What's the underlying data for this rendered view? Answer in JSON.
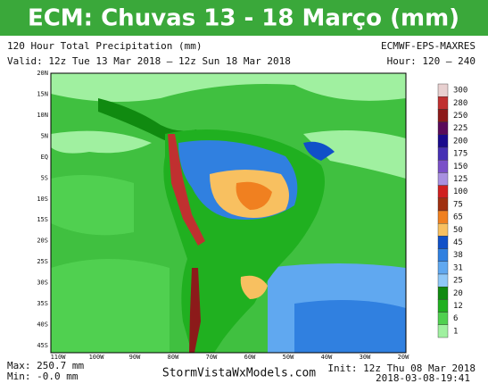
{
  "header": {
    "title": "ECM: Chuvas 13 - 18 Março (mm)"
  },
  "info": {
    "product": "120 Hour Total Precipitation (mm)",
    "model": "ECMWF-EPS-MAXRES",
    "valid": "Valid: 12z Tue 13 Mar 2018 — 12z Sun 18 Mar 2018",
    "hour": "Hour: 120 — 240"
  },
  "map": {
    "lat_labels": [
      "20N",
      "15N",
      "10N",
      "5N",
      "EQ",
      "5S",
      "10S",
      "15S",
      "20S",
      "25S",
      "30S",
      "35S",
      "40S",
      "45S"
    ],
    "lon_labels": [
      "110W",
      "100W",
      "90W",
      "80W",
      "70W",
      "60W",
      "50W",
      "40W",
      "30W",
      "20W"
    ]
  },
  "legend": {
    "levels": [
      {
        "label": "300",
        "color": "#e8d0d0"
      },
      {
        "label": "280",
        "color": "#c03030"
      },
      {
        "label": "250",
        "color": "#8c1a1a"
      },
      {
        "label": "225",
        "color": "#5a0a5a"
      },
      {
        "label": "200",
        "color": "#1a0a8c"
      },
      {
        "label": "175",
        "color": "#4630b4"
      },
      {
        "label": "150",
        "color": "#7a50c8"
      },
      {
        "label": "125",
        "color": "#a890e0"
      },
      {
        "label": "100",
        "color": "#d02020"
      },
      {
        "label": "75",
        "color": "#a03010"
      },
      {
        "label": "65",
        "color": "#f08020"
      },
      {
        "label": "50",
        "color": "#f8c060"
      },
      {
        "label": "45",
        "color": "#1050c8"
      },
      {
        "label": "38",
        "color": "#3080e0"
      },
      {
        "label": "31",
        "color": "#60a8f0"
      },
      {
        "label": "25",
        "color": "#90c8f8"
      },
      {
        "label": "20",
        "color": "#108a10"
      },
      {
        "label": "12",
        "color": "#20b020"
      },
      {
        "label": "6",
        "color": "#50d050"
      },
      {
        "label": "1",
        "color": "#a0f0a0"
      }
    ]
  },
  "footer": {
    "max": "Max: 250.7 mm",
    "min": "Min: -0.0 mm",
    "site": "StormVistaWxModels.com",
    "init": "Init: 12z Thu 08 Mar 2018",
    "stamp": "2018-03-08-19:41"
  }
}
